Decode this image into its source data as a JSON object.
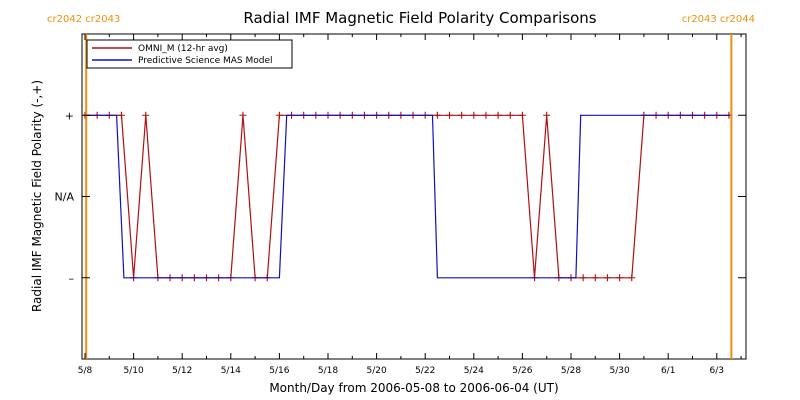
{
  "chart_data": {
    "type": "line",
    "title": "Radial IMF Magnetic Field Polarity Comparisons",
    "xlabel": "Month/Day from 2006-05-08 to 2006-06-04 (UT)",
    "ylabel": "Radial IMF Magnetic Field Polarity (-,+)",
    "x_range_days": [
      0,
      27
    ],
    "x_tick_days": [
      0,
      2,
      4,
      6,
      8,
      10,
      12,
      14,
      16,
      18,
      20,
      22,
      24,
      26
    ],
    "x_tick_labels": [
      "5/8",
      "5/10",
      "5/12",
      "5/14",
      "5/16",
      "5/18",
      "5/20",
      "5/22",
      "5/24",
      "5/26",
      "5/28",
      "5/30",
      "6/1",
      "6/3"
    ],
    "ylim": [
      -2,
      2
    ],
    "y_ticks": [
      {
        "value": 1,
        "label": "+"
      },
      {
        "value": 0,
        "label": "N/A"
      },
      {
        "value": -1,
        "label": "–"
      }
    ],
    "grid": false,
    "legend_position": "top-left",
    "carrington": {
      "left_label": "cr2042 cr2043",
      "right_label": "cr2043 cr2044",
      "left_boundary_day": 0.05,
      "right_boundary_day": 26.6,
      "color": "#f0900a"
    },
    "series": [
      {
        "name": "OMNI_M (12-hr avg)",
        "color": "#b01010",
        "markers": "plus",
        "x": [
          0,
          0.5,
          1,
          1.5,
          2,
          2.5,
          3,
          3.5,
          4,
          4.5,
          5,
          5.5,
          6,
          6.5,
          7,
          7.5,
          8,
          8.5,
          9,
          9.5,
          10,
          10.5,
          11,
          11.5,
          12,
          12.5,
          13,
          13.5,
          14,
          14.5,
          15,
          15.5,
          16,
          16.5,
          17,
          17.5,
          18,
          18.5,
          19,
          19.5,
          20,
          20.5,
          21,
          21.5,
          22,
          22.5,
          23,
          23.5,
          24,
          24.5,
          25,
          25.5,
          26,
          26.5
        ],
        "y": [
          1,
          1,
          1,
          1,
          -1,
          1,
          -1,
          -1,
          -1,
          -1,
          -1,
          -1,
          -1,
          1,
          -1,
          -1,
          1,
          1,
          1,
          1,
          1,
          1,
          1,
          1,
          1,
          1,
          1,
          1,
          1,
          1,
          1,
          1,
          1,
          1,
          1,
          1,
          1,
          -1,
          1,
          -1,
          -1,
          -1,
          -1,
          -1,
          -1,
          -1,
          1,
          1,
          1,
          1,
          1,
          1,
          1,
          1
        ]
      },
      {
        "name": "Predictive Science MAS Model",
        "color": "#1010c0",
        "x": [
          0,
          1.3,
          1.6,
          8.0,
          8.3,
          14.3,
          14.5,
          20.2,
          20.4,
          26.6
        ],
        "y": [
          1,
          1,
          -1,
          -1,
          1,
          1,
          -1,
          -1,
          1,
          1
        ]
      }
    ]
  }
}
